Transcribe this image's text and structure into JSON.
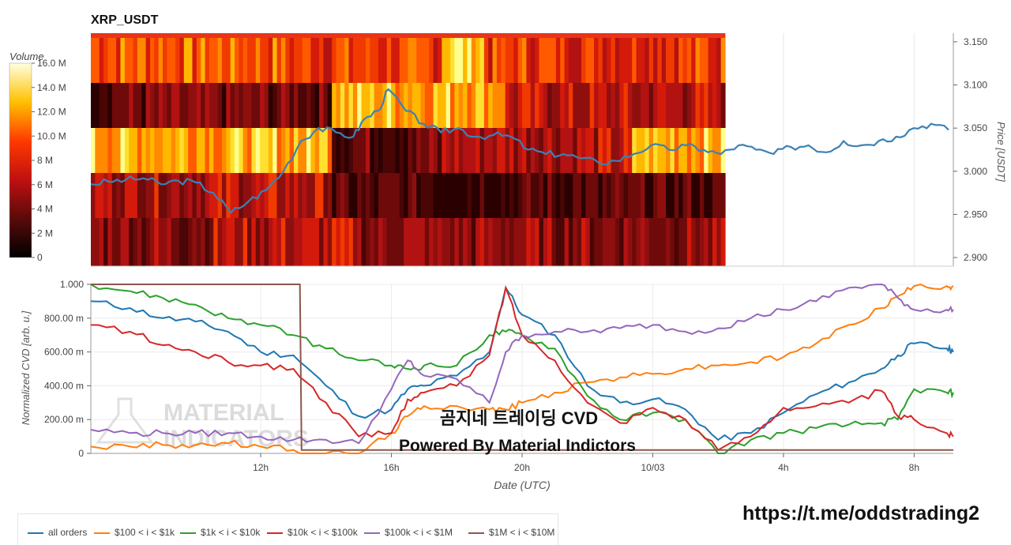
{
  "chart_data": [
    {
      "type": "heatmap",
      "title": "XRP_USDT",
      "colorbar": {
        "label": "Volume",
        "range": [
          0,
          16000000
        ],
        "tick_labels": [
          "0",
          "2 M",
          "4 M",
          "6 M",
          "8 M",
          "10.0 M",
          "12.0 M",
          "14.0 M",
          "16.0 M"
        ]
      },
      "y_axis": {
        "label": "Price [USDT]",
        "range": [
          2.89,
          3.16
        ],
        "tick_labels": [
          "2.900",
          "2.950",
          "3.000",
          "3.050",
          "3.100",
          "3.150"
        ],
        "side": "right"
      },
      "price_line": {
        "color": "#3a82b6",
        "x_hours": [
          0.0,
          0.5,
          1.0,
          1.5,
          2.0,
          2.5,
          3.0,
          3.5,
          4.0,
          4.5,
          5.0,
          5.5,
          6.0,
          6.5,
          7.0,
          7.5,
          7.8,
          8.2,
          8.5,
          9.0,
          9.5,
          10.0,
          10.5,
          11.0,
          11.5,
          12.0,
          12.5,
          13.0,
          13.5,
          14.0,
          14.5,
          15.0,
          15.5,
          16.0,
          16.5,
          17.0,
          17.5,
          18.0,
          18.5,
          19.0,
          19.5,
          20.0,
          20.5,
          21.0,
          21.5,
          22.0,
          22.5,
          23.0,
          23.5,
          24.0,
          24.5
        ],
        "price": [
          2.985,
          2.988,
          2.99,
          2.992,
          2.985,
          2.989,
          2.987,
          2.975,
          2.952,
          2.965,
          2.978,
          3.0,
          3.035,
          3.05,
          3.045,
          3.04,
          3.06,
          3.07,
          3.095,
          3.07,
          3.055,
          3.045,
          3.05,
          3.04,
          3.042,
          3.04,
          3.025,
          3.02,
          3.02,
          3.015,
          3.01,
          3.012,
          3.02,
          3.03,
          3.025,
          3.03,
          3.025,
          3.02,
          3.03,
          3.025,
          3.02,
          3.028,
          3.03,
          3.022,
          3.035,
          3.03,
          3.035,
          3.04,
          3.05,
          3.055,
          3.048
        ]
      },
      "price_bands": [
        {
          "range": [
            3.1,
            3.16
          ],
          "intensity": "high"
        },
        {
          "range": [
            3.05,
            3.1
          ],
          "intensity": "mixed"
        },
        {
          "range": [
            3.0,
            3.05
          ],
          "intensity": "mixed"
        },
        {
          "range": [
            2.95,
            3.0
          ],
          "intensity": "low"
        },
        {
          "range": [
            2.89,
            2.95
          ],
          "intensity": "low"
        }
      ]
    },
    {
      "type": "line",
      "xlabel": "Date (UTC)",
      "ylabel": "Normalized CVD [arb. u.]",
      "ylim": [
        0,
        1.0
      ],
      "y_tick_labels": [
        "0",
        "200.00 m",
        "400.00 m",
        "600.00 m",
        "800.00 m",
        "1.000"
      ],
      "x_tick_labels": [
        "12h",
        "16h",
        "20h",
        "10/03",
        "4h",
        "8h"
      ],
      "x_ticks_hours": [
        3,
        7,
        11,
        15,
        19,
        23
      ],
      "x_range_hours": [
        -2.2,
        24.2
      ],
      "series": [
        {
          "name": "all orders",
          "color": "#1f77b4",
          "x": [
            -2.2,
            -1,
            0,
            1,
            2,
            3,
            4,
            5,
            6,
            7,
            7.5,
            8,
            9,
            10,
            10.5,
            11,
            12,
            13,
            14,
            15,
            16,
            17,
            18,
            19,
            20,
            21,
            22,
            22.5,
            23,
            24,
            24.2
          ],
          "y": [
            0.9,
            0.86,
            0.8,
            0.78,
            0.72,
            0.6,
            0.58,
            0.4,
            0.22,
            0.26,
            0.38,
            0.4,
            0.46,
            0.6,
            0.98,
            0.82,
            0.7,
            0.4,
            0.3,
            0.32,
            0.26,
            0.08,
            0.12,
            0.24,
            0.35,
            0.42,
            0.5,
            0.58,
            0.65,
            0.62,
            0.6
          ]
        },
        {
          "name": "$100 < i < $1k",
          "color": "#ff7f0e",
          "x": [
            -2.2,
            -1,
            0,
            1,
            2,
            3,
            4,
            5,
            6,
            7,
            7.5,
            8,
            9,
            10,
            10.5,
            11,
            12,
            13,
            14,
            15,
            16,
            17,
            18,
            19,
            20,
            21,
            22,
            22.5,
            23,
            24,
            24.2
          ],
          "y": [
            0.04,
            0.04,
            0.05,
            0.05,
            0.06,
            0.04,
            0.02,
            0.0,
            0.0,
            0.12,
            0.22,
            0.28,
            0.28,
            0.26,
            0.26,
            0.3,
            0.36,
            0.42,
            0.45,
            0.47,
            0.5,
            0.52,
            0.54,
            0.57,
            0.65,
            0.76,
            0.86,
            0.93,
            0.99,
            0.99,
            0.99
          ]
        },
        {
          "name": "$1k < i < $10k",
          "color": "#2ca02c",
          "x": [
            -2.2,
            -1,
            0,
            1,
            2,
            3,
            4,
            5,
            6,
            7,
            7.5,
            8,
            9,
            10,
            10.5,
            11,
            12,
            13,
            14,
            15,
            16,
            17,
            18,
            19,
            20,
            21,
            22,
            22.5,
            23,
            24,
            24.2
          ],
          "y": [
            1.0,
            0.96,
            0.92,
            0.88,
            0.8,
            0.76,
            0.7,
            0.62,
            0.55,
            0.52,
            0.5,
            0.52,
            0.52,
            0.7,
            0.72,
            0.7,
            0.62,
            0.34,
            0.2,
            0.24,
            0.2,
            0.0,
            0.08,
            0.12,
            0.15,
            0.17,
            0.18,
            0.2,
            0.38,
            0.36,
            0.36
          ]
        },
        {
          "name": "$10k < i < $100k",
          "color": "#d62728",
          "x": [
            -2.2,
            -1,
            0,
            1,
            2,
            3,
            4,
            5,
            6,
            7,
            7.5,
            8,
            9,
            10,
            10.5,
            11,
            12,
            13,
            14,
            15,
            16,
            17,
            18,
            19,
            20,
            21,
            22,
            22.5,
            23,
            24,
            24.2
          ],
          "y": [
            0.76,
            0.72,
            0.64,
            0.6,
            0.54,
            0.52,
            0.5,
            0.3,
            0.1,
            0.12,
            0.32,
            0.36,
            0.4,
            0.58,
            0.98,
            0.7,
            0.55,
            0.3,
            0.18,
            0.27,
            0.2,
            0.02,
            0.1,
            0.27,
            0.28,
            0.3,
            0.37,
            0.22,
            0.2,
            0.12,
            0.1
          ]
        },
        {
          "name": "$100k < i < $1M",
          "color": "#9467bd",
          "x": [
            -2.2,
            -1,
            0,
            1,
            2,
            3,
            4,
            5,
            6,
            7,
            7.5,
            8,
            9,
            10,
            10.5,
            11,
            12,
            13,
            14,
            15,
            16,
            17,
            18,
            19,
            20,
            21,
            22,
            22.5,
            23,
            24,
            24.2
          ],
          "y": [
            0.14,
            0.12,
            0.12,
            0.12,
            0.12,
            0.1,
            0.08,
            0.08,
            0.06,
            0.38,
            0.55,
            0.46,
            0.44,
            0.3,
            0.6,
            0.7,
            0.72,
            0.72,
            0.74,
            0.76,
            0.72,
            0.74,
            0.8,
            0.85,
            0.9,
            0.98,
            1.0,
            0.92,
            0.85,
            0.85,
            0.85
          ]
        },
        {
          "name": "$1M < i < $10M",
          "color": "#8c564b",
          "x": [
            -2.2,
            4.2,
            4.25,
            24.2
          ],
          "y": [
            1.0,
            1.0,
            0.02,
            0.02
          ]
        }
      ]
    }
  ],
  "watermark": {
    "brand_line1": "MATERIAL",
    "brand_line2": "INDICATORS",
    "overlay_line1": "곰지네 트레이딩 CVD",
    "overlay_line2": "Powered By Material Indictors"
  },
  "footer": {
    "telegram_link": "https://t.me/oddstrading2"
  }
}
